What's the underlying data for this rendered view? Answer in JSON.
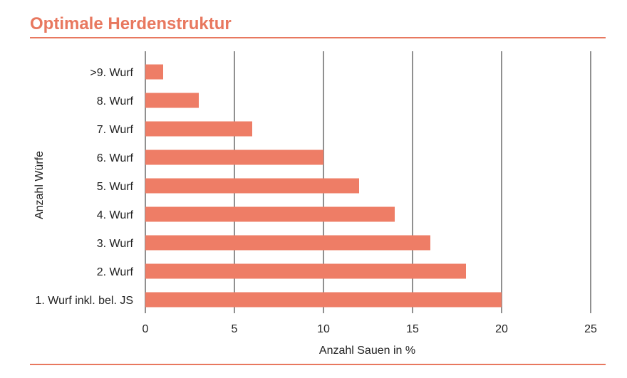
{
  "header": {
    "title": "Optimale Herdenstruktur"
  },
  "colors": {
    "accent": "#e8785f",
    "bar": "#ee7d66",
    "grid": "#222222"
  },
  "chart_data": {
    "type": "bar",
    "orientation": "horizontal",
    "title": "Optimale Herdenstruktur",
    "xlabel": "Anzahl Sauen in %",
    "ylabel": "Anzahl Würfe",
    "xlim": [
      0,
      25
    ],
    "xticks": [
      0,
      5,
      10,
      15,
      20,
      25
    ],
    "grid": "vertical",
    "categories": [
      ">9. Wurf",
      "8. Wurf",
      "7. Wurf",
      "6. Wurf",
      "5. Wurf",
      "4. Wurf",
      "3. Wurf",
      "2. Wurf",
      "1. Wurf inkl. bel. JS"
    ],
    "values": [
      1,
      3,
      6,
      10,
      12,
      14,
      16,
      18,
      20
    ]
  }
}
